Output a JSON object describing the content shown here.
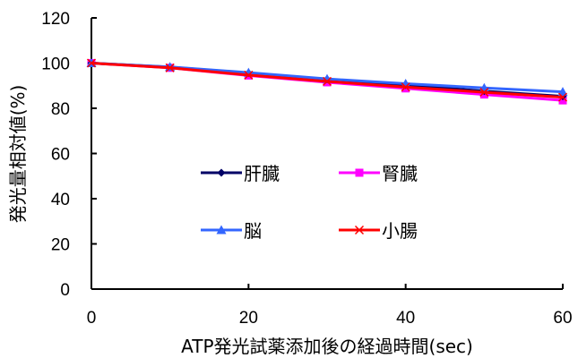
{
  "chart_data": {
    "type": "line",
    "title": "",
    "xlabel": "ATP発光試薬添加後の経過時間(sec)",
    "ylabel": "発光量相対値(%)",
    "xlim": [
      0,
      60
    ],
    "ylim": [
      0,
      120
    ],
    "x_ticks": [
      "0",
      "20",
      "40",
      "60"
    ],
    "y_ticks": [
      "0",
      "20",
      "40",
      "60",
      "80",
      "100",
      "120"
    ],
    "grid": false,
    "legend_position": "inside-center",
    "x": [
      0,
      10,
      20,
      30,
      40,
      50,
      60
    ],
    "series": [
      {
        "name": "肝臓",
        "color": "#000066",
        "marker": "diamond",
        "values": [
          100,
          98.2,
          95.6,
          92.8,
          90.3,
          87.6,
          85.3
        ]
      },
      {
        "name": "腎臓",
        "color": "#ff00ff",
        "marker": "square",
        "values": [
          100,
          97.9,
          94.5,
          91.5,
          88.8,
          86.1,
          83.5
        ]
      },
      {
        "name": "脳",
        "color": "#3366ff",
        "marker": "triangle",
        "values": [
          100,
          98.3,
          95.8,
          93.0,
          90.9,
          89.0,
          87.3
        ]
      },
      {
        "name": "小腸",
        "color": "#ff0000",
        "marker": "x",
        "values": [
          100,
          97.9,
          94.7,
          91.9,
          89.4,
          87.1,
          84.9
        ]
      }
    ]
  }
}
